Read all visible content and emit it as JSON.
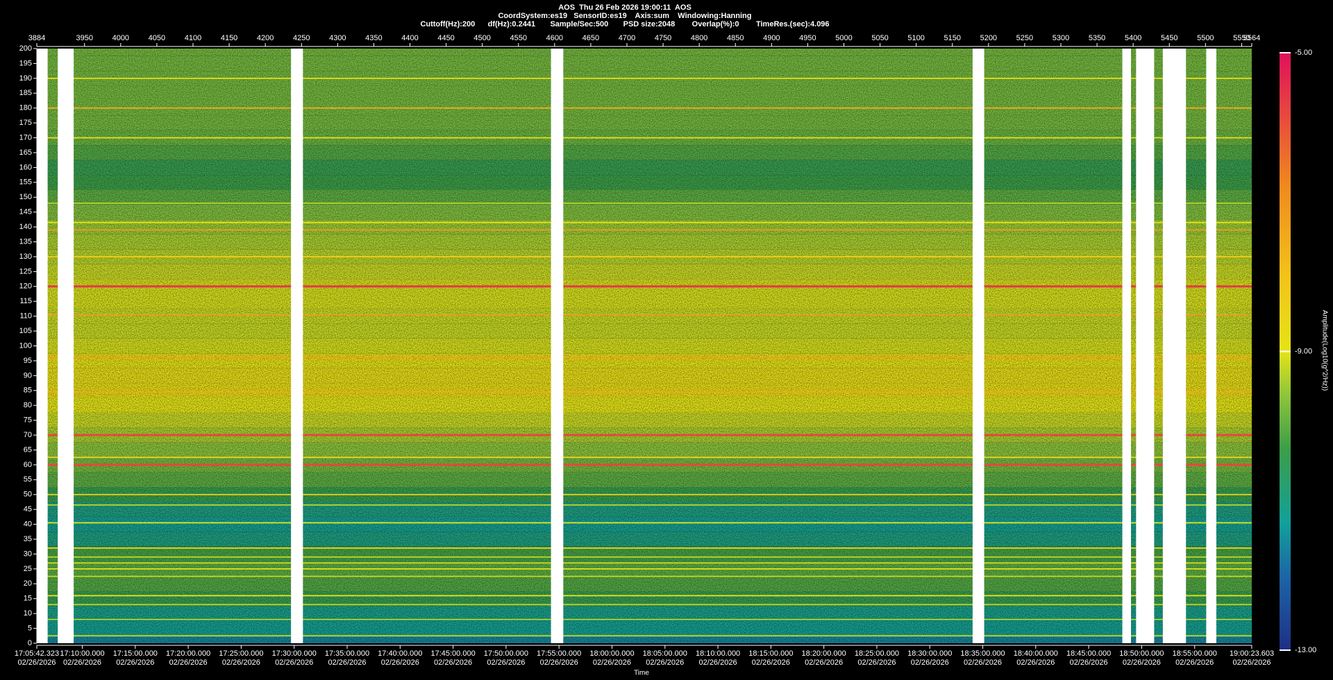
{
  "chart_data": {
    "type": "spectrogram",
    "header": [
      "AOS  Thu 26 Feb 2026 19:00:11  AOS",
      "CoordSystem:es19   SensorID:es19    Axis:sum    Windowing:Hanning",
      "Cuttoff(Hz):200      df(Hz):0.2441       Sample/Sec:500       PSD size:2048        Overlap(%):0        TimeRes.(sec):4.096"
    ],
    "xlabel": "Time",
    "colorbar_label": "Amplitude(Log10(g^2/Hz))",
    "xlim": [
      3884,
      5564
    ],
    "xticks": [
      3884,
      3950,
      4000,
      4050,
      4100,
      4150,
      4200,
      4250,
      4300,
      4350,
      4400,
      4450,
      4500,
      4550,
      4600,
      4650,
      4700,
      4750,
      4800,
      4850,
      4900,
      4950,
      5000,
      5050,
      5100,
      5150,
      5200,
      5250,
      5300,
      5350,
      5400,
      5450,
      5500,
      5550,
      5564
    ],
    "time_ticks": [
      {
        "value": 3884,
        "label": "17:05:42.323\n02/26/2026"
      },
      {
        "value": 3946.91,
        "label": "17:10:00.000\n02/26/2026"
      },
      {
        "value": 4020.15,
        "label": "17:15:00.000\n02/26/2026"
      },
      {
        "value": 4093.4,
        "label": "17:20:00.000\n02/26/2026"
      },
      {
        "value": 4166.64,
        "label": "17:25:00.000\n02/26/2026"
      },
      {
        "value": 4239.88,
        "label": "17:30:00.000\n02/26/2026"
      },
      {
        "value": 4313.12,
        "label": "17:35:00.000\n02/26/2026"
      },
      {
        "value": 4386.37,
        "label": "17:40:00.000\n02/26/2026"
      },
      {
        "value": 4459.61,
        "label": "17:45:00.000\n02/26/2026"
      },
      {
        "value": 4532.85,
        "label": "17:50:00.000\n02/26/2026"
      },
      {
        "value": 4606.09,
        "label": "17:55:00.000\n02/26/2026"
      },
      {
        "value": 4679.33,
        "label": "18:00:00.000\n02/26/2026"
      },
      {
        "value": 4752.58,
        "label": "18:05:00.000\n02/26/2026"
      },
      {
        "value": 4825.82,
        "label": "18:10:00.000\n02/26/2026"
      },
      {
        "value": 4899.06,
        "label": "18:15:00.000\n02/26/2026"
      },
      {
        "value": 4972.3,
        "label": "18:20:00.000\n02/26/2026"
      },
      {
        "value": 5045.54,
        "label": "18:25:00.000\n02/26/2026"
      },
      {
        "value": 5118.79,
        "label": "18:30:00.000\n02/26/2026"
      },
      {
        "value": 5192.03,
        "label": "18:35:00.000\n02/26/2026"
      },
      {
        "value": 5265.27,
        "label": "18:40:00.000\n02/26/2026"
      },
      {
        "value": 5338.51,
        "label": "18:45:00.000\n02/26/2026"
      },
      {
        "value": 5411.76,
        "label": "18:50:00.000\n02/26/2026"
      },
      {
        "value": 5485.0,
        "label": "18:55:00.000\n02/26/2026"
      },
      {
        "value": 5564,
        "label": "19:00:23.603\n02/26/2026"
      }
    ],
    "ylim": [
      0,
      200
    ],
    "yticks": [
      0,
      5,
      10,
      15,
      20,
      25,
      30,
      35,
      40,
      45,
      50,
      55,
      60,
      65,
      70,
      75,
      80,
      85,
      90,
      95,
      100,
      105,
      110,
      115,
      120,
      125,
      130,
      135,
      140,
      145,
      150,
      155,
      160,
      165,
      170,
      175,
      180,
      185,
      190,
      195,
      200
    ],
    "clim": [
      -13,
      -5
    ],
    "cticks": [
      {
        "value": -5,
        "label": "-5.00"
      },
      {
        "value": -9,
        "label": "-9.00"
      },
      {
        "value": -13,
        "label": "-13.00"
      }
    ],
    "colormap": [
      [
        -13,
        "#1e2f86"
      ],
      [
        -12,
        "#1c66a6"
      ],
      [
        -11.3,
        "#12a09a"
      ],
      [
        -10.3,
        "#3c9e48"
      ],
      [
        -9.6,
        "#8cc43c"
      ],
      [
        -9,
        "#e4e418"
      ],
      [
        -8,
        "#f3c31a"
      ],
      [
        -6.8,
        "#f08a1e"
      ],
      [
        -5,
        "#e0105a"
      ]
    ],
    "background": {
      "freqs": [
        0,
        5,
        10,
        15,
        20,
        25,
        30,
        35,
        40,
        45,
        50,
        55,
        60,
        65,
        70,
        75,
        80,
        85,
        90,
        95,
        100,
        105,
        110,
        115,
        120,
        125,
        130,
        135,
        140,
        145,
        150,
        155,
        160,
        165,
        170,
        175,
        180,
        185,
        190,
        195,
        200
      ],
      "values": [
        -11.6,
        -11.2,
        -11.1,
        -10.4,
        -10.1,
        -10.0,
        -10.2,
        -11.0,
        -11.2,
        -11.0,
        -10.4,
        -10.0,
        -9.8,
        -9.6,
        -9.4,
        -9.2,
        -9.0,
        -8.8,
        -8.8,
        -8.9,
        -9.1,
        -9.2,
        -9.2,
        -9.1,
        -9.1,
        -9.2,
        -9.3,
        -9.4,
        -9.5,
        -9.7,
        -10.0,
        -10.3,
        -10.4,
        -10.1,
        -9.9,
        -9.8,
        -9.8,
        -9.8,
        -9.8,
        -9.8,
        -9.8
      ]
    },
    "lines": {
      "freqs": [
        190,
        180,
        170,
        148,
        141.5,
        139,
        130,
        120,
        110.5,
        96,
        84.5,
        70,
        62.5,
        60,
        50,
        46.5,
        40.5,
        32,
        29,
        27,
        25,
        22.5,
        16,
        13,
        8,
        2.5
      ],
      "values": [
        -8.8,
        -7.5,
        -8.8,
        -9.3,
        -9.0,
        -7.2,
        -8.3,
        -5.6,
        -7.2,
        -7.2,
        -7.4,
        -5.8,
        -8.5,
        -5.8,
        -8.5,
        -9.2,
        -9.0,
        -8.6,
        -9.2,
        -9.2,
        -9.0,
        -9.2,
        -9.0,
        -9.3,
        -9.3,
        -9.2
      ]
    },
    "gaps": [
      [
        3884,
        3899
      ],
      [
        3913,
        3935
      ],
      [
        4235.5,
        4252
      ],
      [
        4595,
        4612
      ],
      [
        5178,
        5194
      ],
      [
        5385,
        5397
      ],
      [
        5404,
        5429
      ],
      [
        5441,
        5473
      ],
      [
        5501,
        5515
      ]
    ]
  }
}
